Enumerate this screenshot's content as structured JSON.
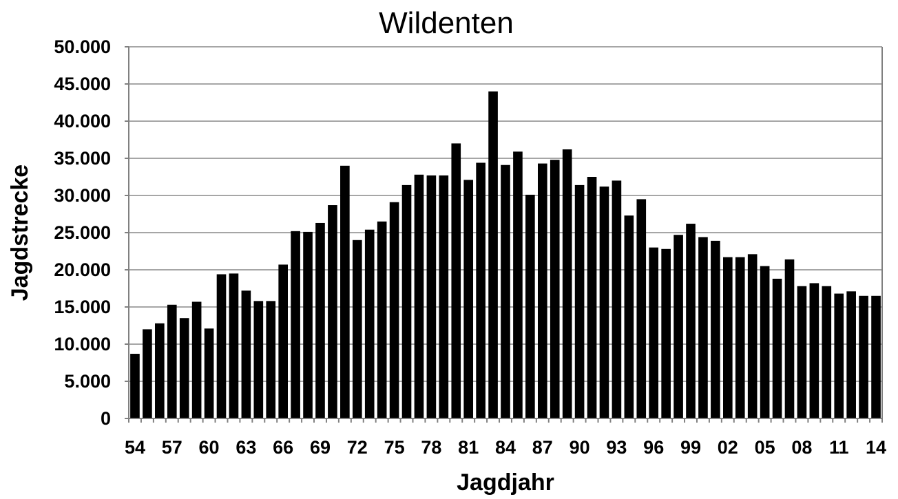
{
  "chart_data": {
    "type": "bar",
    "title": "Wildenten",
    "xlabel": "Jagdjahr",
    "ylabel": "Jagdstrecke",
    "ylim": [
      0,
      50000
    ],
    "y_ticks": [
      "0",
      "5.000",
      "10.000",
      "15.000",
      "20.000",
      "25.000",
      "30.000",
      "35.000",
      "40.000",
      "45.000",
      "50.000"
    ],
    "grid": true,
    "legend": "none",
    "bar_color": "#000000",
    "categories": [
      "54",
      "55",
      "56",
      "57",
      "58",
      "59",
      "60",
      "61",
      "62",
      "63",
      "64",
      "65",
      "66",
      "67",
      "68",
      "69",
      "70",
      "71",
      "72",
      "73",
      "74",
      "75",
      "76",
      "77",
      "78",
      "79",
      "80",
      "81",
      "82",
      "83",
      "84",
      "85",
      "86",
      "87",
      "88",
      "89",
      "90",
      "91",
      "92",
      "93",
      "94",
      "95",
      "96",
      "97",
      "98",
      "99",
      "00",
      "01",
      "02",
      "03",
      "04",
      "05",
      "06",
      "07",
      "08",
      "09",
      "10",
      "11",
      "12",
      "13",
      "14"
    ],
    "x_tick_labels": [
      "54",
      "57",
      "60",
      "63",
      "66",
      "69",
      "72",
      "75",
      "78",
      "81",
      "84",
      "87",
      "90",
      "93",
      "96",
      "99",
      "02",
      "05",
      "08",
      "11",
      "14"
    ],
    "values": [
      8700,
      12000,
      12800,
      15300,
      13500,
      15700,
      12100,
      19400,
      19500,
      17200,
      15800,
      15800,
      20700,
      25200,
      25100,
      26300,
      28700,
      34000,
      24000,
      25400,
      26500,
      29100,
      31400,
      32800,
      32700,
      32700,
      37000,
      32100,
      34400,
      44000,
      34100,
      35900,
      30100,
      34300,
      34800,
      36200,
      31400,
      32500,
      31200,
      32000,
      27300,
      29500,
      23000,
      22800,
      24700,
      26200,
      24400,
      23900,
      21700,
      21700,
      22100,
      20500,
      18800,
      21400,
      17800,
      18200,
      17800,
      16800,
      17100,
      16500,
      16500
    ]
  }
}
